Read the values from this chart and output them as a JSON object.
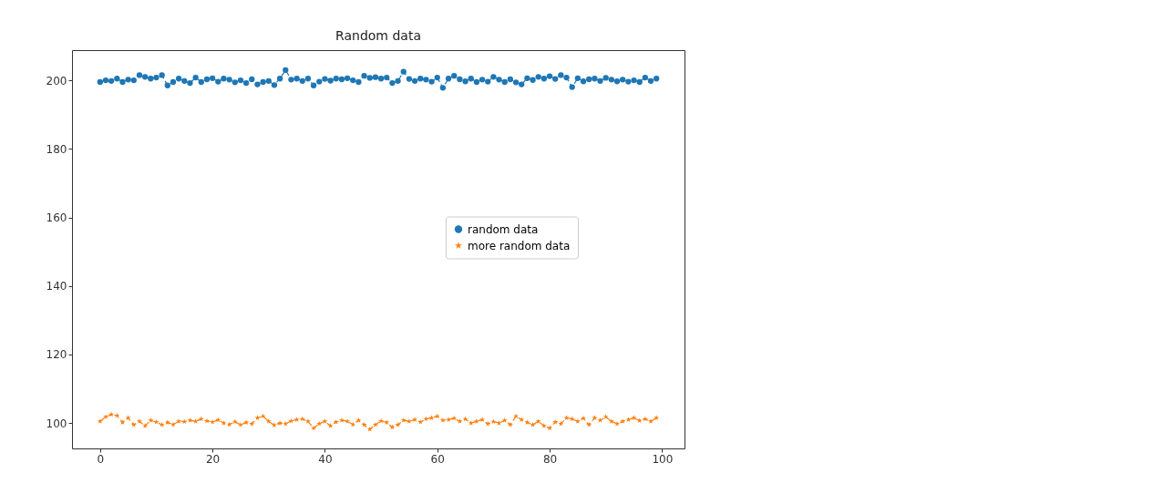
{
  "chart_data": {
    "type": "line",
    "title": "Random data",
    "line_style": "dashed",
    "legend": "center right",
    "grid": false,
    "xlim": [
      -5,
      104
    ],
    "xticks": [
      0,
      20,
      40,
      60,
      80,
      100
    ],
    "ylim": [
      92.6,
      208.8
    ],
    "yticks": [
      100,
      120,
      140,
      160,
      180,
      200
    ],
    "x": [
      0,
      1,
      2,
      3,
      4,
      5,
      6,
      7,
      8,
      9,
      10,
      11,
      12,
      13,
      14,
      15,
      16,
      17,
      18,
      19,
      20,
      21,
      22,
      23,
      24,
      25,
      26,
      27,
      28,
      29,
      30,
      31,
      32,
      33,
      34,
      35,
      36,
      37,
      38,
      39,
      40,
      41,
      42,
      43,
      44,
      45,
      46,
      47,
      48,
      49,
      50,
      51,
      52,
      53,
      54,
      55,
      56,
      57,
      58,
      59,
      60,
      61,
      62,
      63,
      64,
      65,
      66,
      67,
      68,
      69,
      70,
      71,
      72,
      73,
      74,
      75,
      76,
      77,
      78,
      79,
      80,
      81,
      82,
      83,
      84,
      85,
      86,
      87,
      88,
      89,
      90,
      91,
      92,
      93,
      94,
      95,
      96,
      97,
      98,
      99
    ],
    "series": [
      {
        "name": "random data",
        "color": "#1f77b4",
        "marker": "circle",
        "values": [
          199.5,
          200,
          199.8,
          200.5,
          199.5,
          200.2,
          200,
          201.5,
          201,
          200.5,
          200.8,
          201.5,
          198.5,
          199.5,
          200.5,
          199.8,
          199.2,
          200.8,
          199.5,
          200.3,
          200.6,
          199.6,
          200.5,
          200.2,
          199.4,
          200,
          199.2,
          200.3,
          198.8,
          199.5,
          199.8,
          198.6,
          200.5,
          203,
          200.2,
          200.5,
          199.8,
          200.5,
          198.5,
          199.6,
          200.4,
          199.9,
          200.5,
          200.3,
          200.6,
          200,
          199.5,
          201.3,
          200.7,
          200.9,
          200.5,
          200.8,
          199.2,
          199.8,
          202.5,
          200.4,
          199.8,
          200.5,
          200.2,
          199.6,
          200.8,
          197.8,
          200.5,
          201.3,
          200.3,
          199.7,
          200.5,
          199.5,
          200.2,
          199.6,
          201,
          200.2,
          199.5,
          200.3,
          199.4,
          198.8,
          200.6,
          200.1,
          201,
          200.5,
          201.2,
          200.4,
          201.5,
          200.8,
          198,
          200.6,
          199.7,
          200.3,
          200.5,
          199.8,
          200.7,
          200.2,
          199.7,
          200.2,
          199.6,
          200,
          199.5,
          200.8,
          199.8,
          200.5
        ]
      },
      {
        "name": "more random data",
        "color": "#ff7f0e",
        "marker": "star",
        "values": [
          100.5,
          101.8,
          102.5,
          102.2,
          100.2,
          101.5,
          99.5,
          100.5,
          99.2,
          100.8,
          100.3,
          99.5,
          100.2,
          99.6,
          100.5,
          100.4,
          100.8,
          100.5,
          101.2,
          100.6,
          100.3,
          100.9,
          100,
          99.6,
          100.4,
          99.5,
          100.2,
          99.8,
          101.5,
          102,
          100.5,
          99.4,
          100,
          99.8,
          100.6,
          101,
          101.2,
          100.5,
          98.5,
          99.8,
          100.5,
          99.2,
          100.3,
          100.8,
          100.5,
          99.6,
          100.8,
          99.5,
          98.2,
          99.5,
          100.6,
          100.2,
          98.8,
          99.5,
          100.8,
          100.5,
          101,
          100.3,
          101.2,
          101.5,
          102,
          100.8,
          101,
          101.4,
          100.5,
          101.2,
          100,
          100.5,
          101,
          99.8,
          100.4,
          100,
          100.8,
          99.5,
          102,
          101,
          100.2,
          99.5,
          100.5,
          99.2,
          98.5,
          100.3,
          99.8,
          101.5,
          101.2,
          100.5,
          101.4,
          99.5,
          101.5,
          100.8,
          101.8,
          100.5,
          99.8,
          100.5,
          101,
          101.5,
          100.7,
          101.2,
          100.5,
          101.5
        ]
      }
    ]
  }
}
